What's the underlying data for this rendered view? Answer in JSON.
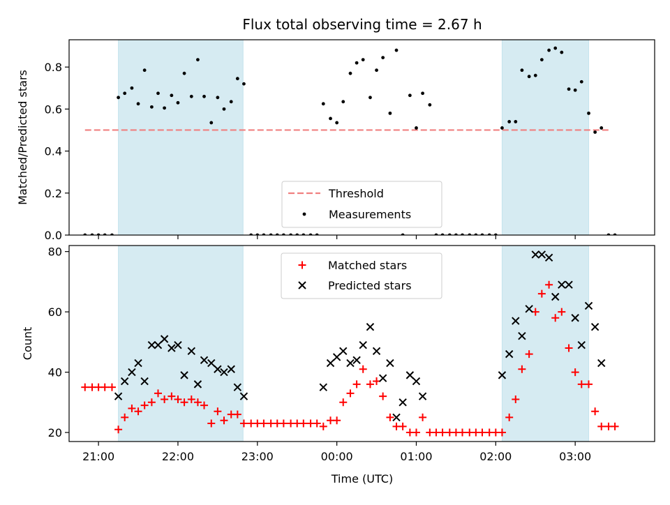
{
  "figure": {
    "title": "Flux total observing time = 2.67 h",
    "xlabel": "Time (UTC)"
  },
  "chart_data": [
    {
      "type": "scatter",
      "panel": "top",
      "ylabel": "Matched/Predicted stars",
      "ylim": [
        0,
        0.93
      ],
      "yticks": [
        "0.0",
        "0.2",
        "0.4",
        "0.6",
        "0.8"
      ],
      "ytick_values": [
        0,
        0.2,
        0.4,
        0.6,
        0.8
      ],
      "xlim_hours": [
        20.63,
        28.0
      ],
      "legend": {
        "placement": "lower-center",
        "entries": [
          "Threshold",
          "Measurements"
        ]
      },
      "shaded_spans_hours": [
        [
          21.25,
          22.82
        ],
        [
          26.08,
          27.17
        ]
      ],
      "threshold": {
        "name": "Threshold",
        "value": 0.5,
        "x_range_hours": [
          20.83,
          27.45
        ],
        "color": "#f08080"
      },
      "series": [
        {
          "name": "Measurements",
          "color": "#000000",
          "x_hours": [
            20.83,
            20.92,
            21.0,
            21.08,
            21.17,
            21.25,
            21.33,
            21.42,
            21.5,
            21.58,
            21.67,
            21.75,
            21.83,
            21.92,
            22.0,
            22.08,
            22.17,
            22.25,
            22.33,
            22.42,
            22.5,
            22.58,
            22.67,
            22.75,
            22.83,
            22.92,
            23.0,
            23.08,
            23.17,
            23.25,
            23.33,
            23.42,
            23.5,
            23.58,
            23.67,
            23.75,
            23.83,
            23.92,
            24.0,
            24.08,
            24.17,
            24.25,
            24.33,
            24.42,
            24.5,
            24.58,
            24.67,
            24.75,
            24.83,
            24.92,
            25.0,
            25.08,
            25.17,
            25.25,
            25.33,
            25.42,
            25.5,
            25.58,
            25.67,
            25.75,
            25.83,
            25.92,
            26.0,
            26.08,
            26.17,
            26.25,
            26.33,
            26.42,
            26.5,
            26.58,
            26.67,
            26.75,
            26.83,
            26.92,
            27.0,
            27.08,
            27.17,
            27.25,
            27.33,
            27.42,
            27.5
          ],
          "y": [
            0,
            0,
            0,
            0,
            0,
            0.655,
            0.675,
            0.7,
            0.625,
            0.785,
            0.61,
            0.675,
            0.605,
            0.665,
            0.63,
            0.77,
            0.66,
            0.835,
            0.66,
            0.535,
            0.655,
            0.6,
            0.635,
            0.745,
            0.72,
            0,
            0,
            0,
            0,
            0,
            0,
            0,
            0,
            0,
            0,
            0,
            0.625,
            0.555,
            0.535,
            0.635,
            0.77,
            0.82,
            0.835,
            0.655,
            0.785,
            0.845,
            0.58,
            0.88,
            0,
            0.665,
            0.51,
            0.675,
            0.62,
            0,
            0,
            0,
            0,
            0,
            0,
            0,
            0,
            0,
            0,
            0.51,
            0.54,
            0.54,
            0.785,
            0.755,
            0.76,
            0.835,
            0.88,
            0.89,
            0.87,
            0.695,
            0.69,
            0.73,
            0.58,
            0.49,
            0.51,
            0,
            0
          ]
        }
      ]
    },
    {
      "type": "scatter",
      "panel": "bottom",
      "ylabel": "Count",
      "ylim": [
        17,
        82
      ],
      "yticks": [
        "20",
        "40",
        "60",
        "80"
      ],
      "ytick_values": [
        20,
        40,
        60,
        80
      ],
      "xlim_hours": [
        20.63,
        28.0
      ],
      "xticks": [
        "21:00",
        "22:00",
        "23:00",
        "00:00",
        "01:00",
        "02:00",
        "03:00"
      ],
      "xtick_values_hours": [
        21,
        22,
        23,
        24,
        25,
        26,
        27
      ],
      "legend": {
        "placement": "top-center",
        "entries": [
          "Matched stars",
          "Predicted stars"
        ]
      },
      "shaded_spans_hours": [
        [
          21.25,
          22.82
        ],
        [
          26.08,
          27.17
        ]
      ],
      "series": [
        {
          "name": "Matched stars",
          "marker": "plus",
          "color": "#ff0000",
          "x_hours": [
            20.83,
            20.92,
            21.0,
            21.08,
            21.17,
            21.25,
            21.33,
            21.42,
            21.5,
            21.58,
            21.67,
            21.75,
            21.83,
            21.92,
            22.0,
            22.08,
            22.17,
            22.25,
            22.33,
            22.42,
            22.5,
            22.58,
            22.67,
            22.75,
            22.83,
            22.92,
            23.0,
            23.08,
            23.17,
            23.25,
            23.33,
            23.42,
            23.5,
            23.58,
            23.67,
            23.75,
            23.83,
            23.92,
            24.0,
            24.08,
            24.17,
            24.25,
            24.33,
            24.42,
            24.5,
            24.58,
            24.67,
            24.75,
            24.83,
            24.92,
            25.0,
            25.08,
            25.17,
            25.25,
            25.33,
            25.42,
            25.5,
            25.58,
            25.67,
            25.75,
            25.83,
            25.92,
            26.0,
            26.08,
            26.17,
            26.25,
            26.33,
            26.42,
            26.5,
            26.58,
            26.67,
            26.75,
            26.83,
            26.92,
            27.0,
            27.08,
            27.17,
            27.25,
            27.33,
            27.42,
            27.5
          ],
          "y": [
            35,
            35,
            35,
            35,
            35,
            21,
            25,
            28,
            27,
            29,
            30,
            33,
            31,
            32,
            31,
            30,
            31,
            30,
            29,
            23,
            27,
            24,
            26,
            26,
            23,
            23,
            23,
            23,
            23,
            23,
            23,
            23,
            23,
            23,
            23,
            23,
            22,
            24,
            24,
            30,
            33,
            36,
            41,
            36,
            37,
            32,
            25,
            22,
            22,
            20,
            20,
            25,
            20,
            20,
            20,
            20,
            20,
            20,
            20,
            20,
            20,
            20,
            20,
            20,
            25,
            31,
            41,
            46,
            60,
            66,
            69,
            58,
            60,
            48,
            40,
            36,
            36,
            27,
            22,
            22,
            22
          ]
        },
        {
          "name": "Predicted stars",
          "marker": "x",
          "color": "#000000",
          "x_hours": [
            21.25,
            21.33,
            21.42,
            21.5,
            21.58,
            21.67,
            21.75,
            21.83,
            21.92,
            22.0,
            22.08,
            22.17,
            22.25,
            22.33,
            22.42,
            22.5,
            22.58,
            22.67,
            22.75,
            22.83,
            23.83,
            23.92,
            24.0,
            24.08,
            24.17,
            24.25,
            24.33,
            24.42,
            24.5,
            24.58,
            24.67,
            24.75,
            24.83,
            24.92,
            25.0,
            25.08,
            26.08,
            26.17,
            26.25,
            26.33,
            26.42,
            26.5,
            26.58,
            26.67,
            26.75,
            26.83,
            26.92,
            27.0,
            27.08,
            27.17,
            27.25,
            27.33
          ],
          "y": [
            32,
            37,
            40,
            43,
            37,
            49,
            49,
            51,
            48,
            49,
            39,
            47,
            36,
            44,
            43,
            41,
            40,
            41,
            35,
            32,
            35,
            43,
            45,
            47,
            43,
            44,
            49,
            55,
            47,
            38,
            43,
            25,
            30,
            39,
            37,
            32,
            39,
            46,
            57,
            52,
            61,
            79,
            79,
            78,
            65,
            69,
            69,
            58,
            49,
            62,
            55,
            43
          ]
        }
      ]
    }
  ]
}
